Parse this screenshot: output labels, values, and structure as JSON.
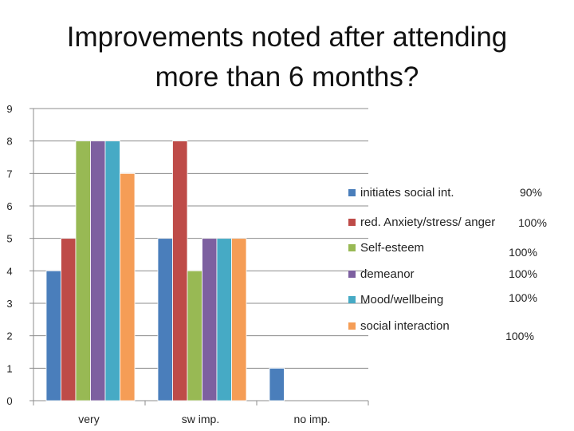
{
  "chart_data": {
    "type": "bar",
    "title_lines": [
      "Improvements noted after attending",
      "more than 6 months?"
    ],
    "categories": [
      "very",
      "sw imp.",
      "no imp."
    ],
    "ylim": [
      0,
      9
    ],
    "yticks": [
      0,
      1,
      2,
      3,
      4,
      5,
      6,
      7,
      8,
      9
    ],
    "grid": true,
    "legend_position": "right",
    "series": [
      {
        "name": "initiates social int.",
        "color": "#4a7ebb",
        "values": [
          4,
          5,
          1
        ],
        "pct": "90%"
      },
      {
        "name": "red. Anxiety/stress/ anger",
        "color": "#be4b48",
        "values": [
          5,
          8,
          0
        ],
        "pct": "100%"
      },
      {
        "name": "Self-esteem",
        "color": "#98b954",
        "values": [
          8,
          4,
          0
        ],
        "pct": "100%"
      },
      {
        "name": "demeanor",
        "color": "#7d60a0",
        "values": [
          8,
          5,
          0
        ],
        "pct": "100%"
      },
      {
        "name": "Mood/wellbeing",
        "color": "#46aac5",
        "values": [
          8,
          5,
          0
        ],
        "pct": "100%"
      },
      {
        "name": "social interaction",
        "color": "#f59d56",
        "values": [
          7,
          5,
          0
        ],
        "pct": "100%"
      }
    ]
  }
}
